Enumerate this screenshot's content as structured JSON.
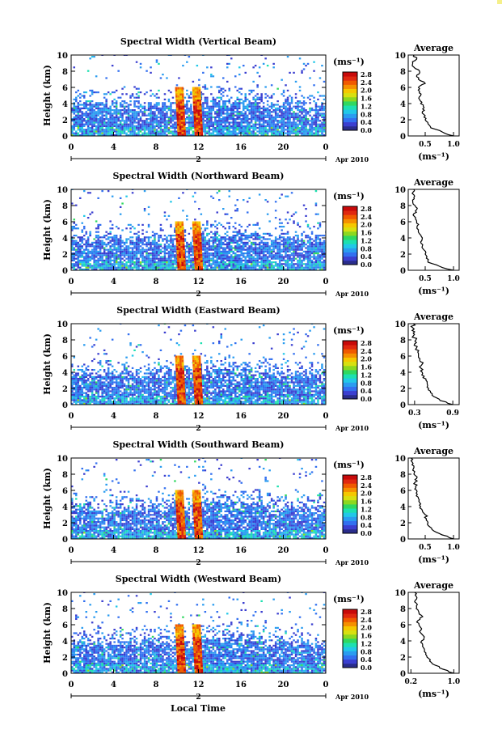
{
  "time_label": "Local Time",
  "date_label": "Apr 2010",
  "day_label": "2",
  "colorbar": {
    "unit": "(ms⁻¹)",
    "ticks": [
      "2.8",
      "2.4",
      "2.0",
      "1.6",
      "1.2",
      "0.8",
      "0.4",
      "0.0"
    ],
    "colors": [
      "#2a2d8c",
      "#3b3fd0",
      "#3270f0",
      "#2a9cf0",
      "#22c8e8",
      "#1de0b0",
      "#30d860",
      "#8cd820",
      "#d8e010",
      "#f5c800",
      "#f59000",
      "#f05a00",
      "#e02810",
      "#c80a0a"
    ]
  },
  "chart_data": [
    {
      "type": "heatmap",
      "title": "Spectral Width (Vertical Beam)",
      "ylabel": "Height (km)",
      "xlabel": "Local Time",
      "x_ticks": [
        "0",
        "4",
        "8",
        "12",
        "16",
        "20",
        "0"
      ],
      "y_ticks": [
        "0",
        "2",
        "4",
        "6",
        "8",
        "10"
      ],
      "xlim": [
        0,
        24
      ],
      "ylim": [
        0,
        10
      ],
      "colorbar_range": [
        0.0,
        3.0
      ],
      "profile": {
        "title": "Average",
        "xlabel": "(ms⁻¹)",
        "x_ticks": [
          0.5,
          1.0
        ],
        "x_tick_labels": [
          "0.5",
          "1.0"
        ],
        "xlim": [
          0.2,
          1.1
        ],
        "y": [
          0,
          0.5,
          1,
          1.5,
          2,
          2.5,
          3,
          3.5,
          4,
          4.5,
          5,
          5.5,
          6,
          6.5,
          7,
          7.5,
          8,
          8.5,
          9,
          9.5,
          10
        ],
        "x": [
          1.0,
          0.8,
          0.6,
          0.55,
          0.5,
          0.5,
          0.45,
          0.48,
          0.42,
          0.4,
          0.42,
          0.4,
          0.38,
          0.5,
          0.38,
          0.35,
          0.4,
          0.3,
          0.28,
          0.35,
          0.3
        ]
      }
    },
    {
      "type": "heatmap",
      "title": "Spectral Width (Northward Beam)",
      "ylabel": "Height (km)",
      "xlabel": "Local Time",
      "x_ticks": [
        "0",
        "4",
        "8",
        "12",
        "16",
        "20",
        "0"
      ],
      "y_ticks": [
        "0",
        "2",
        "4",
        "6",
        "8",
        "10"
      ],
      "xlim": [
        0,
        24
      ],
      "ylim": [
        0,
        10
      ],
      "colorbar_range": [
        0.0,
        3.0
      ],
      "profile": {
        "title": "Average",
        "xlabel": "(ms⁻¹)",
        "x_ticks": [
          0.5,
          1.0
        ],
        "x_tick_labels": [
          "0.5",
          "1.0"
        ],
        "xlim": [
          0.2,
          1.1
        ],
        "y": [
          0,
          0.5,
          1,
          1.5,
          2,
          2.5,
          3,
          3.5,
          4,
          4.5,
          5,
          5.5,
          6,
          6.5,
          7,
          7.5,
          8,
          8.5,
          9,
          9.5,
          10
        ],
        "x": [
          1.0,
          0.75,
          0.55,
          0.52,
          0.5,
          0.48,
          0.45,
          0.42,
          0.45,
          0.4,
          0.38,
          0.36,
          0.35,
          0.33,
          0.3,
          0.35,
          0.32,
          0.28,
          0.3,
          0.27,
          0.3
        ]
      }
    },
    {
      "type": "heatmap",
      "title": "Spectral Width (Eastward Beam)",
      "ylabel": "Height (km)",
      "xlabel": "Local Time",
      "x_ticks": [
        "0",
        "4",
        "8",
        "12",
        "16",
        "20",
        "0"
      ],
      "y_ticks": [
        "0",
        "2",
        "4",
        "6",
        "8",
        "10"
      ],
      "xlim": [
        0,
        24
      ],
      "ylim": [
        0,
        10
      ],
      "colorbar_range": [
        0.0,
        3.0
      ],
      "profile": {
        "title": "Average",
        "xlabel": "(ms⁻¹)",
        "x_ticks": [
          0.3,
          0.9
        ],
        "x_tick_labels": [
          "0.3",
          "0.9"
        ],
        "xlim": [
          0.2,
          1.0
        ],
        "y": [
          0,
          0.5,
          1,
          1.5,
          2,
          2.5,
          3,
          3.5,
          4,
          4.5,
          5,
          5.5,
          6,
          6.5,
          7,
          7.5,
          8,
          8.5,
          9,
          9.5,
          10
        ],
        "x": [
          0.9,
          0.7,
          0.6,
          0.55,
          0.52,
          0.5,
          0.48,
          0.45,
          0.42,
          0.4,
          0.42,
          0.38,
          0.36,
          0.35,
          0.33,
          0.3,
          0.32,
          0.28,
          0.3,
          0.27,
          0.28
        ]
      }
    },
    {
      "type": "heatmap",
      "title": "Spectral Width (Southward Beam)",
      "ylabel": "Height (km)",
      "xlabel": "Local Time",
      "x_ticks": [
        "0",
        "4",
        "8",
        "12",
        "16",
        "20",
        "0"
      ],
      "y_ticks": [
        "0",
        "2",
        "4",
        "6",
        "8",
        "10"
      ],
      "xlim": [
        0,
        24
      ],
      "ylim": [
        0,
        10
      ],
      "colorbar_range": [
        0.0,
        3.0
      ],
      "profile": {
        "title": "Average",
        "xlabel": "(ms⁻¹)",
        "x_ticks": [
          0.5,
          1.0
        ],
        "x_tick_labels": [
          "0.5",
          "1.0"
        ],
        "xlim": [
          0.2,
          1.1
        ],
        "y": [
          0,
          0.5,
          1,
          1.5,
          2,
          2.5,
          3,
          3.5,
          4,
          4.5,
          5,
          5.5,
          6,
          6.5,
          7,
          7.5,
          8,
          8.5,
          9,
          9.5,
          10
        ],
        "x": [
          1.0,
          0.8,
          0.65,
          0.58,
          0.55,
          0.52,
          0.5,
          0.45,
          0.42,
          0.4,
          0.38,
          0.36,
          0.35,
          0.33,
          0.32,
          0.35,
          0.3,
          0.28,
          0.3,
          0.27,
          0.25
        ]
      }
    },
    {
      "type": "heatmap",
      "title": "Spectral Width (Westward Beam)",
      "ylabel": "Height (km)",
      "xlabel": "Local Time",
      "x_ticks": [
        "0",
        "4",
        "8",
        "12",
        "16",
        "20",
        "0"
      ],
      "y_ticks": [
        "0",
        "2",
        "4",
        "6",
        "8",
        "10"
      ],
      "xlim": [
        0,
        24
      ],
      "ylim": [
        0,
        10
      ],
      "colorbar_range": [
        0.0,
        3.0
      ],
      "profile": {
        "title": "Average",
        "xlabel": "(ms⁻¹)",
        "x_ticks": [
          0.2,
          1.0
        ],
        "x_tick_labels": [
          "0.2",
          "1.0"
        ],
        "xlim": [
          0.15,
          1.1
        ],
        "y": [
          0,
          0.5,
          1,
          1.5,
          2,
          2.5,
          3,
          3.5,
          4,
          4.5,
          5,
          5.5,
          6,
          6.5,
          7,
          7.5,
          8,
          8.5,
          9,
          9.5,
          10
        ],
        "x": [
          1.0,
          0.8,
          0.65,
          0.55,
          0.5,
          0.48,
          0.45,
          0.42,
          0.4,
          0.45,
          0.38,
          0.4,
          0.35,
          0.33,
          0.42,
          0.35,
          0.3,
          0.32,
          0.28,
          0.3,
          0.27
        ]
      }
    }
  ]
}
